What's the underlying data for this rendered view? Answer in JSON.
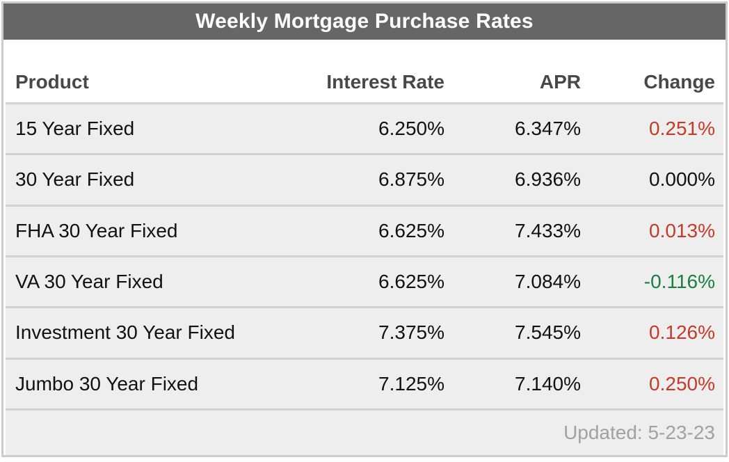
{
  "widget": {
    "title": "Weekly Mortgage Purchase Rates",
    "columns": [
      "Product",
      "Interest Rate",
      "APR",
      "Change"
    ],
    "rows": [
      {
        "product": "15 Year Fixed",
        "interest_rate": "6.250%",
        "apr": "6.347%",
        "change": "0.251%",
        "change_direction": "up"
      },
      {
        "product": "30 Year Fixed",
        "interest_rate": "6.875%",
        "apr": "6.936%",
        "change": "0.000%",
        "change_direction": "flat"
      },
      {
        "product": "FHA 30 Year Fixed",
        "interest_rate": "6.625%",
        "apr": "7.433%",
        "change": "0.013%",
        "change_direction": "up"
      },
      {
        "product": "VA 30 Year Fixed",
        "interest_rate": "6.625%",
        "apr": "7.084%",
        "change": "-0.116%",
        "change_direction": "down"
      },
      {
        "product": "Investment 30 Year Fixed",
        "interest_rate": "7.375%",
        "apr": "7.545%",
        "change": "0.126%",
        "change_direction": "up"
      },
      {
        "product": "Jumbo 30 Year Fixed",
        "interest_rate": "7.125%",
        "apr": "7.140%",
        "change": "0.250%",
        "change_direction": "up"
      }
    ],
    "footer": {
      "updated": "Updated: 5-23-23"
    }
  },
  "colors": {
    "title_bar_bg": "#666666",
    "title_text": "#ffffff",
    "header_text": "#484848",
    "body_text": "#111111",
    "row_bg": "#eeeeee",
    "separator": "#d2d2d2",
    "frame_border": "#cbcbcb",
    "footer_text": "#a1a1a1",
    "change_up": "#c43b29",
    "change_down": "#17803d",
    "change_flat": "#111111"
  },
  "chart_data": {
    "type": "table",
    "title": "Weekly Mortgage Purchase Rates",
    "columns": [
      "Product",
      "Interest Rate",
      "APR",
      "Change"
    ],
    "rows": [
      [
        "15 Year Fixed",
        "6.250%",
        "6.347%",
        "0.251%"
      ],
      [
        "30 Year Fixed",
        "6.875%",
        "6.936%",
        "0.000%"
      ],
      [
        "FHA 30 Year Fixed",
        "6.625%",
        "7.433%",
        "0.013%"
      ],
      [
        "VA 30 Year Fixed",
        "6.625%",
        "7.084%",
        "-0.116%"
      ],
      [
        "Investment 30 Year Fixed",
        "7.375%",
        "7.545%",
        "0.126%"
      ],
      [
        "Jumbo 30 Year Fixed",
        "7.125%",
        "7.140%",
        "0.250%"
      ]
    ],
    "change_color_semantics": {
      "up": "red",
      "down": "green",
      "flat": "black"
    },
    "footnote": "Updated: 5-23-23"
  }
}
